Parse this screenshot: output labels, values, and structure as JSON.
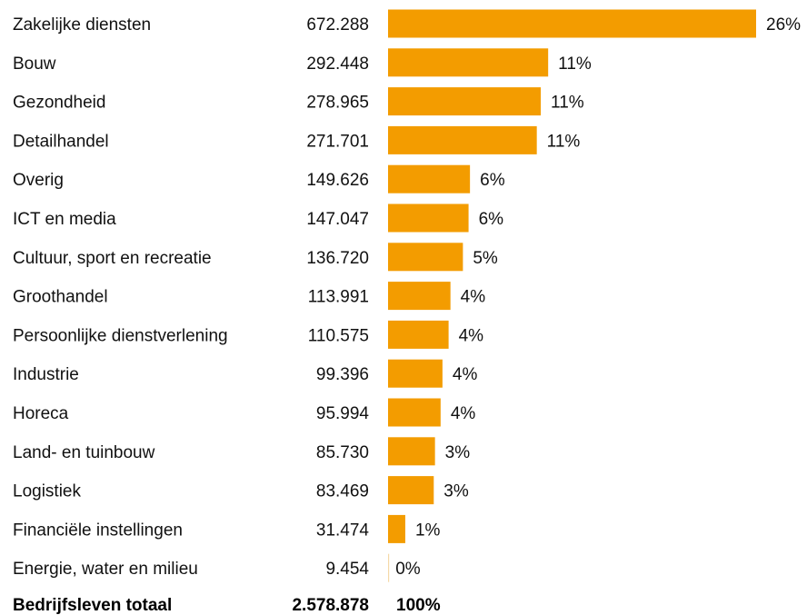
{
  "colors": {
    "bar": "#f39c00",
    "zero_bar": "#f5d9a8",
    "text": "#111111"
  },
  "chart_data": {
    "type": "bar",
    "orientation": "horizontal",
    "categories": [
      "Zakelijke diensten",
      "Bouw",
      "Gezondheid",
      "Detailhandel",
      "Overig",
      "ICT en media",
      "Cultuur, sport en recreatie",
      "Groothandel",
      "Persoonlijke dienstverlening",
      "Industrie",
      "Horeca",
      "Land- en tuinbouw",
      "Logistiek",
      "Financiële instellingen",
      "Energie, water en milieu"
    ],
    "values": [
      672288,
      292448,
      278965,
      271701,
      149626,
      147047,
      136720,
      113991,
      110575,
      99396,
      95994,
      85730,
      83469,
      31474,
      9454
    ],
    "value_labels": [
      "672.288",
      "292.448",
      "278.965",
      "271.701",
      "149.626",
      "147.047",
      "136.720",
      "113.991",
      "110.575",
      "99.396",
      "95.994",
      "85.730",
      "83.469",
      "31.474",
      "9.454"
    ],
    "percent_labels": [
      "26%",
      "11%",
      "11%",
      "11%",
      "6%",
      "6%",
      "5%",
      "4%",
      "4%",
      "4%",
      "4%",
      "3%",
      "3%",
      "1%",
      "0%"
    ],
    "percents": [
      26,
      11,
      11,
      11,
      6,
      6,
      5,
      4,
      4,
      4,
      4,
      3,
      3,
      1,
      0
    ],
    "xlim": [
      0,
      26
    ],
    "grid": false,
    "total": {
      "label": "Bedrijfsleven totaal",
      "value": "2.578.878",
      "percent": "100%"
    }
  }
}
